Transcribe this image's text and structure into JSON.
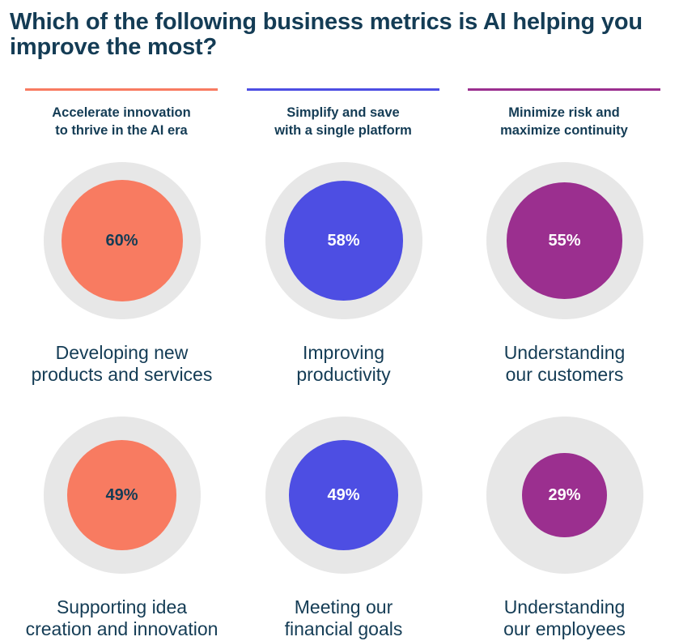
{
  "title": "Which of the following business metrics is AI helping you improve the most?",
  "columns": [
    {
      "label_line1": "Accelerate innovation",
      "label_line2": "to thrive in the AI era",
      "color": "#f87b61"
    },
    {
      "label_line1": "Simplify and save",
      "label_line2": "with a single platform",
      "color": "#4d4ee3"
    },
    {
      "label_line1": "Minimize risk and",
      "label_line2": "maximize continuity",
      "color": "#9b2f8f"
    }
  ],
  "chart_data": {
    "type": "bubble",
    "title": "Which of the following business metrics is AI helping you improve the most?",
    "unit": "%",
    "series": [
      {
        "label_line1": "Developing new",
        "label_line2": "products and services",
        "value": 60,
        "value_label": "60%",
        "column": 0,
        "row": 0,
        "color": "#f87b61",
        "text_color": "#143c55"
      },
      {
        "label_line1": "Improving",
        "label_line2": "productivity",
        "value": 58,
        "value_label": "58%",
        "column": 1,
        "row": 0,
        "color": "#4d4ee3",
        "text_color": "#ffffff"
      },
      {
        "label_line1": "Understanding",
        "label_line2": "our customers",
        "value": 55,
        "value_label": "55%",
        "column": 2,
        "row": 0,
        "color": "#9b2f8f",
        "text_color": "#ffffff"
      },
      {
        "label_line1": "Supporting idea",
        "label_line2": "creation and innovation",
        "value": 49,
        "value_label": "49%",
        "column": 0,
        "row": 1,
        "color": "#f87b61",
        "text_color": "#143c55"
      },
      {
        "label_line1": "Meeting our",
        "label_line2": "financial goals",
        "value": 49,
        "value_label": "49%",
        "column": 1,
        "row": 1,
        "color": "#4d4ee3",
        "text_color": "#ffffff"
      },
      {
        "label_line1": "Understanding",
        "label_line2": "our employees",
        "value": 29,
        "value_label": "29%",
        "column": 2,
        "row": 1,
        "color": "#9b2f8f",
        "text_color": "#ffffff"
      }
    ]
  }
}
